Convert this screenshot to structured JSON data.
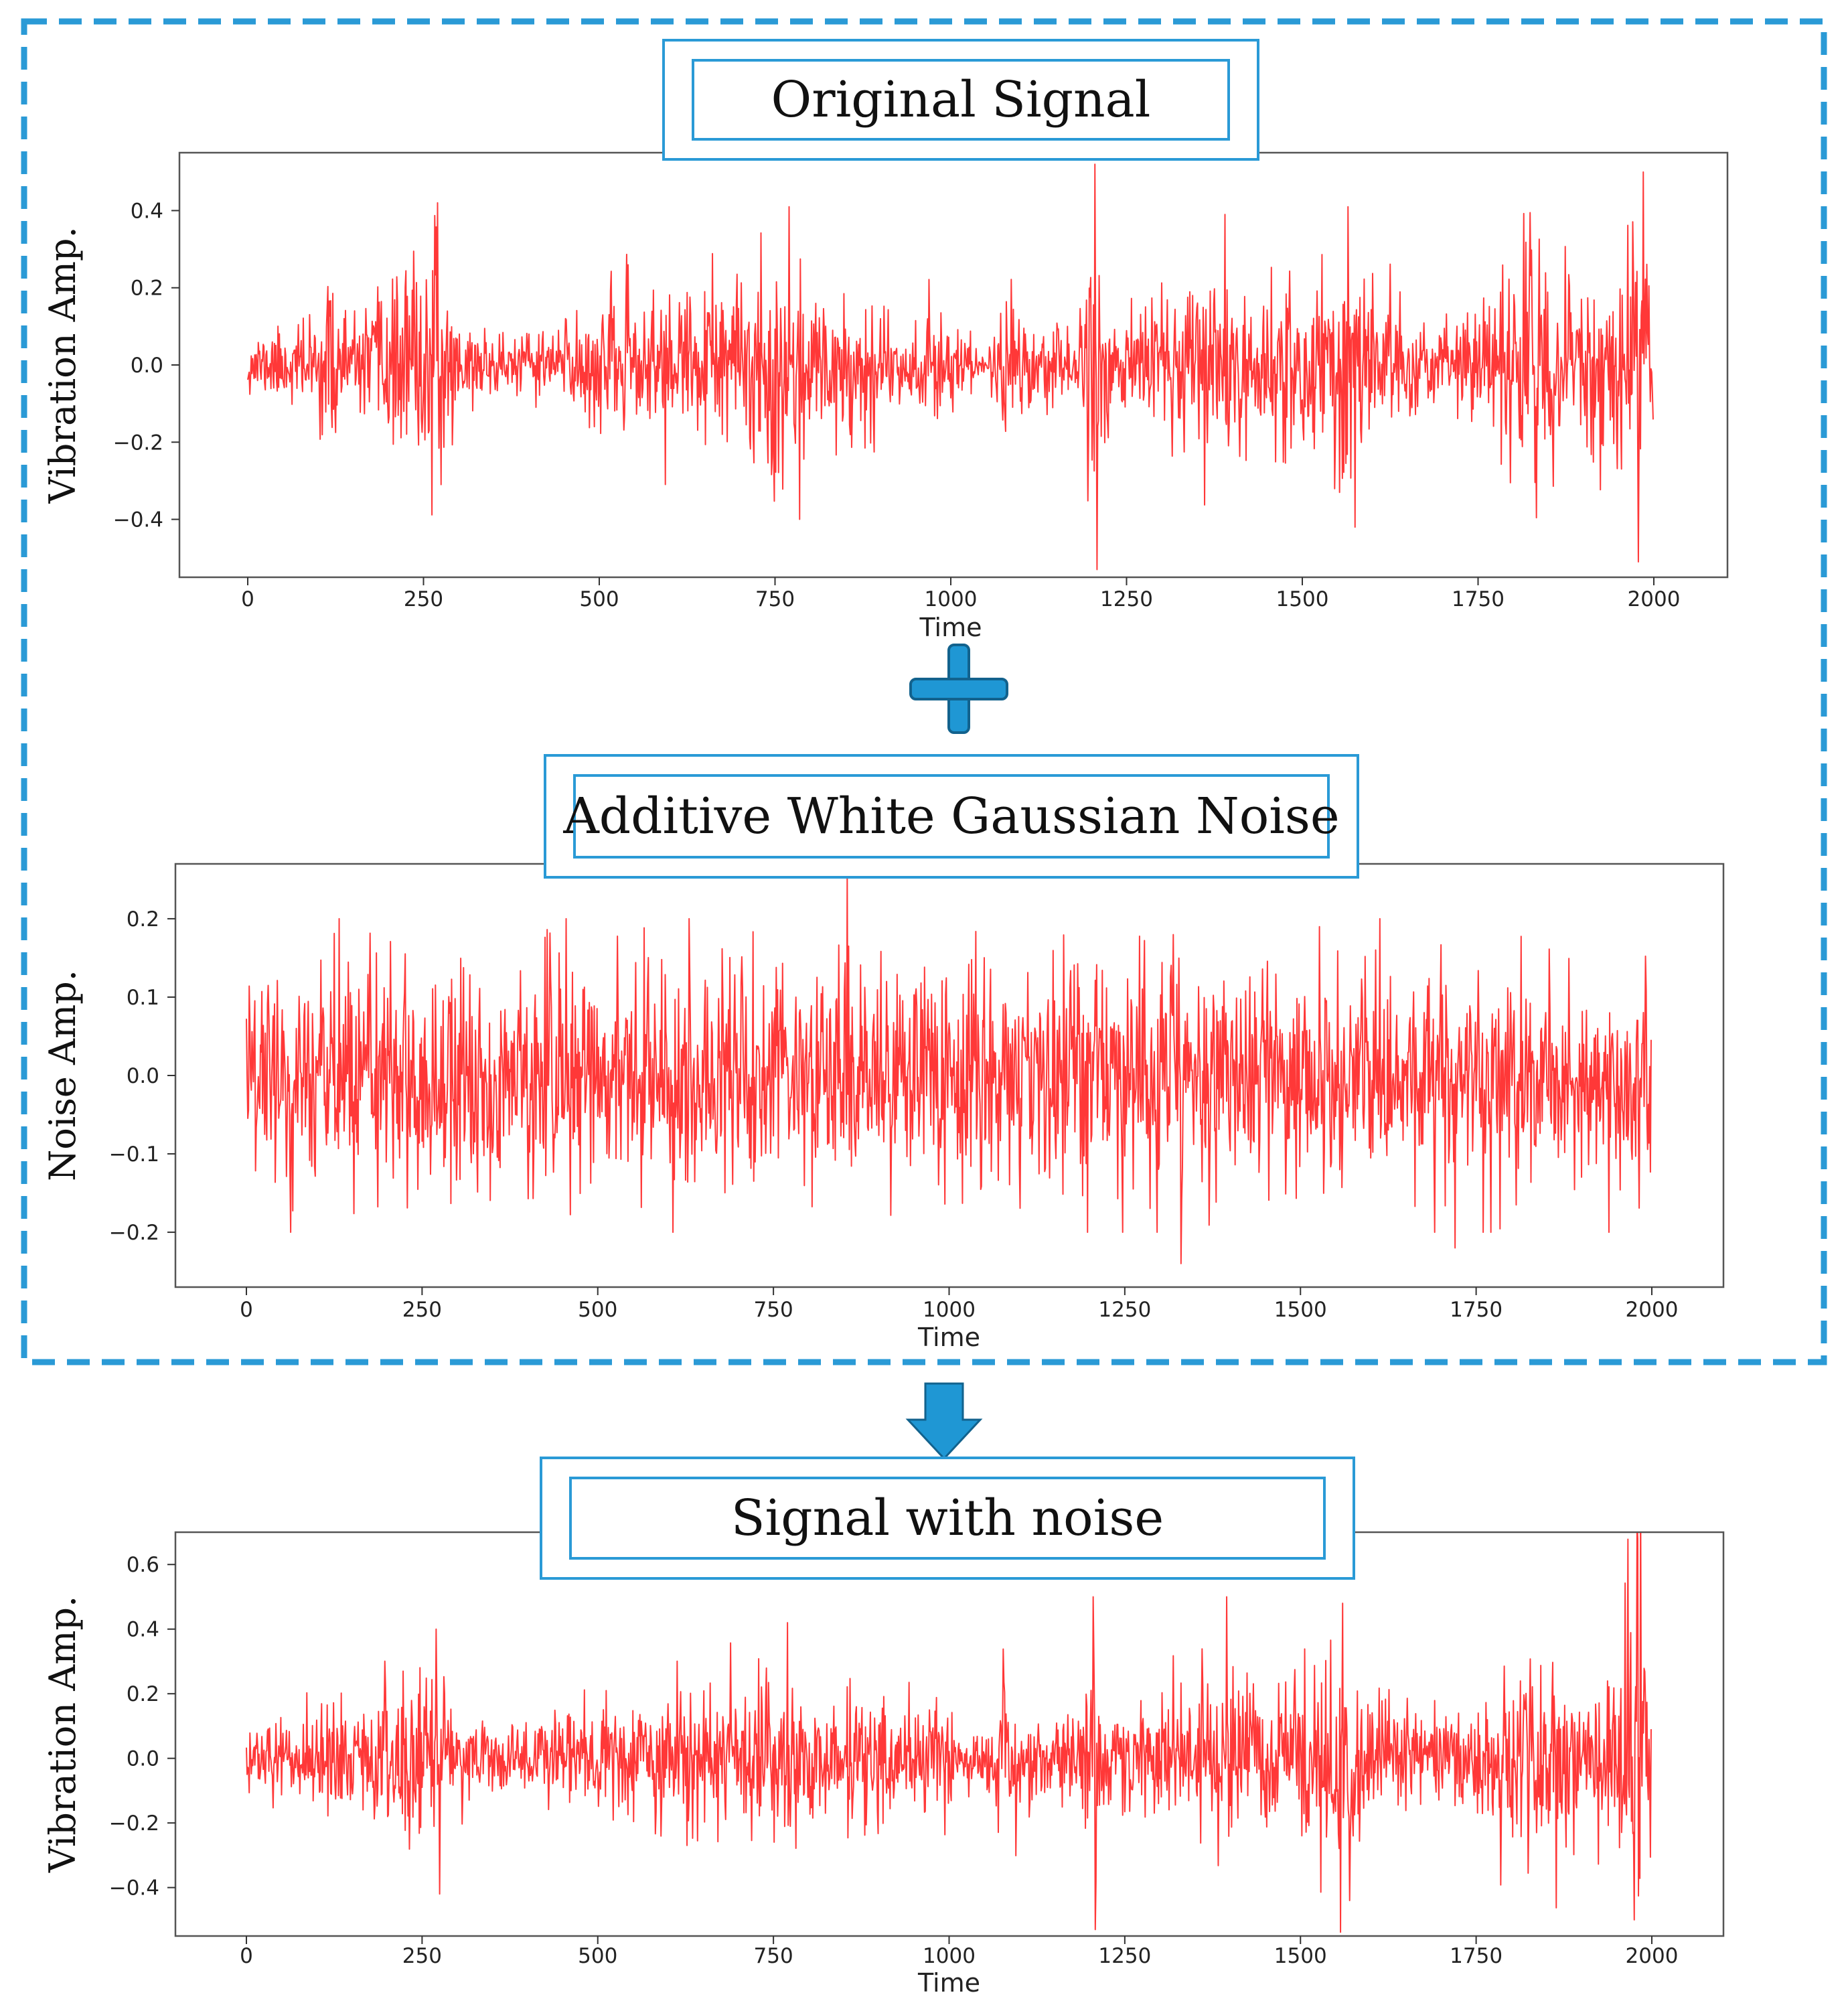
{
  "colors": {
    "frame": "#2a9ad6",
    "signal": "#ff0000",
    "arrow": "#1f97d4"
  },
  "figure": {
    "operator_icon": "plus-icon",
    "result_icon": "down-arrow-icon"
  },
  "chart_data": [
    {
      "type": "line",
      "title": "Original Signal",
      "xlabel": "Time",
      "ylabel": "Vibration Amp.",
      "xlim": [
        0,
        2000
      ],
      "ylim": [
        -0.55,
        0.55
      ],
      "xticks": [
        0,
        250,
        500,
        750,
        1000,
        1250,
        1500,
        1750,
        2000
      ],
      "xtick_labels": [
        "0",
        "250",
        "500",
        "750",
        "1000",
        "1250",
        "1500",
        "1750",
        "2000"
      ],
      "yticks": [
        0.4,
        0.2,
        0.0,
        -0.2,
        -0.4
      ],
      "ytick_labels": [
        "0.4",
        "0.2",
        "0.0",
        "−0.2",
        "−0.4"
      ],
      "series": [
        {
          "name": "Original Signal",
          "n_points": 2000,
          "kind": "vibration",
          "envelope": [
            [
              0,
              0.08
            ],
            [
              100,
              0.14
            ],
            [
              120,
              0.28
            ],
            [
              150,
              0.12
            ],
            [
              260,
              0.36
            ],
            [
              280,
              0.22
            ],
            [
              330,
              0.1
            ],
            [
              400,
              0.09
            ],
            [
              460,
              0.18
            ],
            [
              550,
              0.2
            ],
            [
              620,
              0.22
            ],
            [
              700,
              0.24
            ],
            [
              760,
              0.4
            ],
            [
              800,
              0.18
            ],
            [
              880,
              0.25
            ],
            [
              930,
              0.12
            ],
            [
              980,
              0.18
            ],
            [
              1050,
              0.05
            ],
            [
              1080,
              0.3
            ],
            [
              1110,
              0.12
            ],
            [
              1180,
              0.15
            ],
            [
              1205,
              0.52
            ],
            [
              1230,
              0.15
            ],
            [
              1300,
              0.2
            ],
            [
              1380,
              0.3
            ],
            [
              1430,
              0.2
            ],
            [
              1520,
              0.3
            ],
            [
              1560,
              0.42
            ],
            [
              1600,
              0.25
            ],
            [
              1680,
              0.12
            ],
            [
              1740,
              0.15
            ],
            [
              1820,
              0.4
            ],
            [
              1880,
              0.25
            ],
            [
              1940,
              0.3
            ],
            [
              1985,
              0.5
            ],
            [
              2000,
              0.3
            ]
          ],
          "extremes": [
            [
              270,
              0.42
            ],
            [
              275,
              -0.31
            ],
            [
              770,
              0.41
            ],
            [
              785,
              -0.4
            ],
            [
              1205,
              0.52
            ],
            [
              1208,
              -0.53
            ],
            [
              1390,
              0.39
            ],
            [
              1565,
              0.41
            ],
            [
              1575,
              -0.42
            ],
            [
              1985,
              0.5
            ],
            [
              1978,
              -0.51
            ]
          ]
        }
      ]
    },
    {
      "type": "line",
      "title": "Additive White Gaussian Noise",
      "xlabel": "Time",
      "ylabel": "Noise Amp.",
      "xlim": [
        0,
        2000
      ],
      "ylim": [
        -0.27,
        0.27
      ],
      "xticks": [
        0,
        250,
        500,
        750,
        1000,
        1250,
        1500,
        1750,
        2000
      ],
      "xtick_labels": [
        "0",
        "250",
        "500",
        "750",
        "1000",
        "1250",
        "1500",
        "1750",
        "2000"
      ],
      "yticks": [
        0.2,
        0.1,
        0.0,
        -0.1,
        -0.2
      ],
      "ytick_labels": [
        "0.2",
        "0.1",
        "0.0",
        "−0.1",
        "−0.2"
      ],
      "series": [
        {
          "name": "Additive White Gaussian Noise",
          "n_points": 2000,
          "kind": "noise",
          "envelope": [
            [
              0,
              0.075
            ],
            [
              2000,
              0.075
            ]
          ],
          "extremes": [
            [
              855,
              0.26
            ],
            [
              1330,
              -0.24
            ],
            [
              630,
              0.2
            ],
            [
              1720,
              -0.22
            ]
          ]
        }
      ]
    },
    {
      "type": "line",
      "title": "Signal with noise",
      "xlabel": "Time",
      "ylabel": "Vibration Amp.",
      "xlim": [
        0,
        2000
      ],
      "ylim": [
        -0.55,
        0.7
      ],
      "xticks": [
        0,
        250,
        500,
        750,
        1000,
        1250,
        1500,
        1750,
        2000
      ],
      "xtick_labels": [
        "0",
        "250",
        "500",
        "750",
        "1000",
        "1250",
        "1500",
        "1750",
        "2000"
      ],
      "yticks": [
        0.6,
        0.4,
        0.2,
        0.0,
        -0.2,
        -0.4
      ],
      "ytick_labels": [
        "0.6",
        "0.4",
        "0.2",
        "0.0",
        "−0.2",
        "−0.4"
      ],
      "series": [
        {
          "name": "Signal with noise",
          "n_points": 2000,
          "kind": "vibration",
          "envelope": [
            [
              0,
              0.1
            ],
            [
              100,
              0.16
            ],
            [
              120,
              0.3
            ],
            [
              150,
              0.15
            ],
            [
              260,
              0.36
            ],
            [
              280,
              0.24
            ],
            [
              330,
              0.14
            ],
            [
              400,
              0.13
            ],
            [
              460,
              0.2
            ],
            [
              550,
              0.22
            ],
            [
              620,
              0.24
            ],
            [
              700,
              0.26
            ],
            [
              760,
              0.42
            ],
            [
              800,
              0.22
            ],
            [
              880,
              0.27
            ],
            [
              930,
              0.16
            ],
            [
              980,
              0.2
            ],
            [
              1050,
              0.12
            ],
            [
              1080,
              0.3
            ],
            [
              1110,
              0.16
            ],
            [
              1180,
              0.18
            ],
            [
              1205,
              0.5
            ],
            [
              1230,
              0.18
            ],
            [
              1300,
              0.22
            ],
            [
              1380,
              0.35
            ],
            [
              1430,
              0.22
            ],
            [
              1520,
              0.32
            ],
            [
              1560,
              0.45
            ],
            [
              1600,
              0.28
            ],
            [
              1680,
              0.16
            ],
            [
              1740,
              0.18
            ],
            [
              1820,
              0.42
            ],
            [
              1880,
              0.28
            ],
            [
              1940,
              0.32
            ],
            [
              1980,
              0.68
            ],
            [
              2000,
              0.3
            ]
          ],
          "extremes": [
            [
              270,
              0.4
            ],
            [
              275,
              -0.42
            ],
            [
              770,
              0.42
            ],
            [
              1205,
              0.5
            ],
            [
              1208,
              -0.53
            ],
            [
              1395,
              0.5
            ],
            [
              1560,
              0.48
            ],
            [
              1570,
              -0.44
            ],
            [
              1980,
              0.68
            ],
            [
              1975,
              -0.5
            ]
          ]
        }
      ]
    }
  ]
}
